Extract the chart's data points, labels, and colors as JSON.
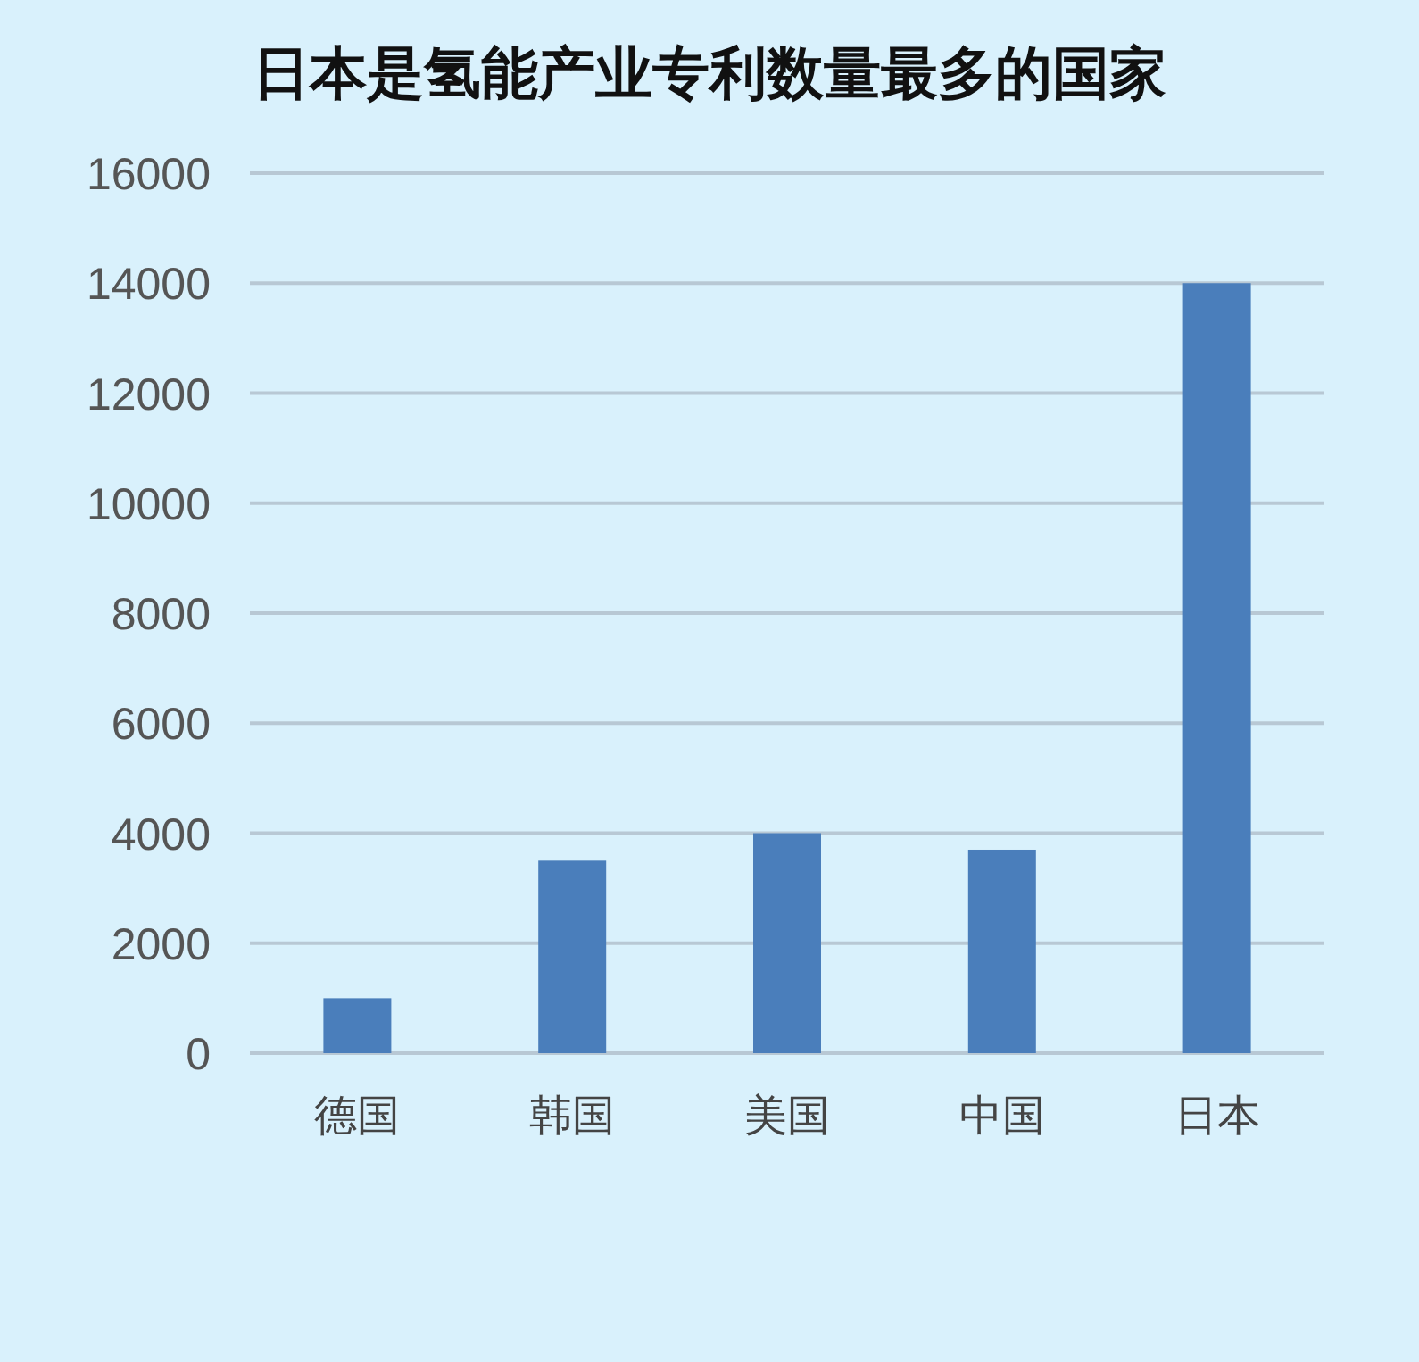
{
  "chart_data": {
    "type": "bar",
    "title": "日本是氢能产业专利数量最多的国家",
    "categories": [
      "德国",
      "韩国",
      "美国",
      "中国",
      "日本"
    ],
    "values": [
      1000,
      3500,
      4000,
      3700,
      14000
    ],
    "color": "#4a7ebb",
    "ylim": [
      0,
      16000
    ],
    "yticks": [
      0,
      2000,
      4000,
      6000,
      8000,
      10000,
      12000,
      14000,
      16000
    ],
    "grid": "y"
  }
}
